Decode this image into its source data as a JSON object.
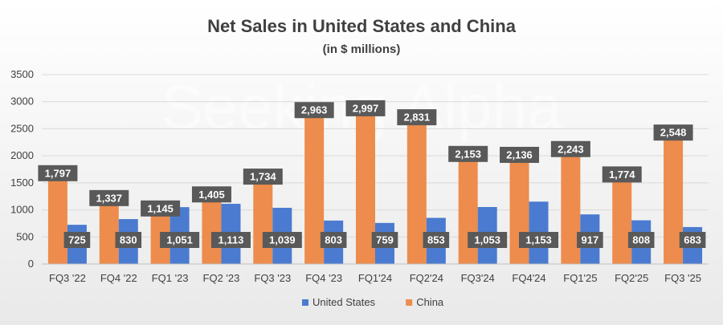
{
  "chart_data": {
    "type": "bar",
    "title": "Net Sales in United States and China",
    "subtitle": "(in $ millions)",
    "categories": [
      "FQ3 '22",
      "FQ4 '22",
      "FQ1 '23",
      "FQ2 '23",
      "FQ3 '23",
      "FQ4 '23",
      "FQ1'24",
      "FQ2'24",
      "FQ3'24",
      "FQ4'24",
      "FQ1'25",
      "FQ2'25",
      "FQ3 '25"
    ],
    "series": [
      {
        "name": "China",
        "color": "#ED8C4C",
        "values": [
          1797,
          1337,
          1145,
          1405,
          1734,
          2963,
          2997,
          2831,
          2153,
          2136,
          2243,
          1774,
          2548
        ]
      },
      {
        "name": "United States",
        "color": "#4A7BD0",
        "values": [
          725,
          830,
          1051,
          1113,
          1039,
          803,
          759,
          853,
          1053,
          1153,
          917,
          808,
          683
        ]
      }
    ],
    "data_labels": {
      "China": [
        "1,797",
        "1,337",
        "1,145",
        "1,405",
        "1,734",
        "2,963",
        "2,997",
        "2,831",
        "2,153",
        "2,136",
        "2,243",
        "1,774",
        "2,548"
      ],
      "United States": [
        "725",
        "830",
        "1,051",
        "1,113",
        "1,039",
        "803",
        "759",
        "853",
        "1,053",
        "1,153",
        "917",
        "808",
        "683"
      ]
    },
    "y_ticks": [
      "0",
      "500",
      "1000",
      "1500",
      "2000",
      "2500",
      "3000",
      "3500"
    ],
    "ylim": [
      0,
      3500
    ],
    "grid": true,
    "legend_position": "bottom",
    "legend": [
      "United States",
      "China"
    ],
    "watermark": "Seeking Alpha",
    "label_box_color": "#595959"
  }
}
